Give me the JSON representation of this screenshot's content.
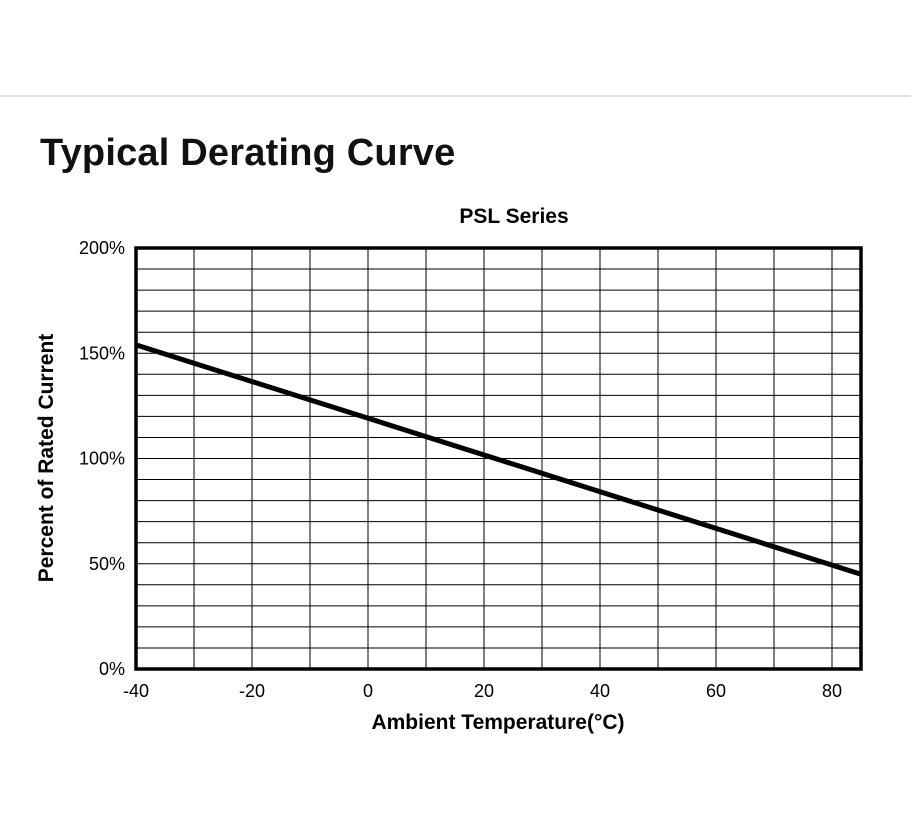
{
  "page": {
    "heading": "Typical Derating Curve"
  },
  "colors": {
    "line": "#000000",
    "grid": "#000000",
    "rule": "#e2e2e2"
  },
  "chart_data": {
    "type": "line",
    "title": "PSL Series",
    "xlabel": "Ambient Temperature(°C)",
    "ylabel": "Percent of Rated Current",
    "xlim": [
      -40,
      85
    ],
    "ylim": [
      0,
      200
    ],
    "x_ticks": [
      -40,
      -20,
      0,
      20,
      40,
      60,
      80
    ],
    "x_tick_labels": [
      "-40",
      "-20",
      "0",
      "20",
      "40",
      "60",
      "80"
    ],
    "y_ticks": [
      0,
      50,
      100,
      150,
      200
    ],
    "y_tick_labels": [
      "0%",
      "50%",
      "100%",
      "150%",
      "200%"
    ],
    "grid": true,
    "grid_x_step": 10,
    "grid_y_step": 10,
    "series": [
      {
        "x": [
          -40,
          85
        ],
        "y": [
          154,
          45
        ]
      }
    ]
  }
}
